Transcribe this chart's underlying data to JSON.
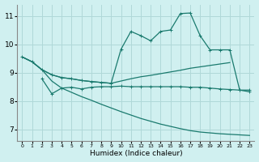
{
  "xlabel": "Humidex (Indice chaleur)",
  "bg_color": "#d0f0f0",
  "line_color": "#1a7a6e",
  "grid_color": "#b0d8d8",
  "xlim": [
    -0.5,
    23.5
  ],
  "ylim": [
    6.6,
    11.4
  ],
  "yticks": [
    7,
    8,
    9,
    10,
    11
  ],
  "xticks": [
    0,
    1,
    2,
    3,
    4,
    5,
    6,
    7,
    8,
    9,
    10,
    11,
    12,
    13,
    14,
    15,
    16,
    17,
    18,
    19,
    20,
    21,
    22,
    23
  ],
  "line1_x": [
    0,
    1,
    2,
    3,
    4,
    5,
    6,
    7,
    8,
    9,
    10,
    11,
    12,
    13,
    14,
    15,
    16,
    17,
    18,
    19,
    20,
    21
  ],
  "line1_y": [
    9.55,
    9.38,
    9.1,
    8.92,
    8.82,
    8.78,
    8.72,
    8.68,
    8.65,
    8.62,
    8.7,
    8.78,
    8.85,
    8.9,
    8.96,
    9.02,
    9.08,
    9.15,
    9.2,
    9.25,
    9.3,
    9.35
  ],
  "line1_marker": false,
  "line2_x": [
    2,
    3,
    4,
    5,
    6,
    7,
    8,
    9,
    10,
    11,
    12,
    13,
    14,
    15,
    16,
    17,
    18,
    19,
    20,
    21,
    22,
    23
  ],
  "line2_y": [
    8.78,
    8.25,
    8.45,
    8.48,
    8.42,
    8.48,
    8.5,
    8.5,
    8.52,
    8.5,
    8.5,
    8.5,
    8.5,
    8.5,
    8.5,
    8.48,
    8.48,
    8.45,
    8.42,
    8.4,
    8.38,
    8.38
  ],
  "line2_marker": true,
  "line3_x": [
    0,
    1,
    2,
    3,
    4,
    5,
    6,
    7,
    8,
    9,
    10,
    11,
    12,
    13,
    14,
    15,
    16,
    17,
    18,
    19,
    20,
    21,
    22,
    23
  ],
  "line3_y": [
    9.55,
    9.38,
    9.1,
    8.7,
    8.45,
    8.3,
    8.15,
    8.02,
    7.88,
    7.75,
    7.62,
    7.5,
    7.38,
    7.28,
    7.18,
    7.1,
    7.02,
    6.95,
    6.9,
    6.87,
    6.84,
    6.82,
    6.8,
    6.78
  ],
  "line3_marker": false,
  "line4_x": [
    0,
    1,
    2,
    3,
    4,
    5,
    6,
    7,
    8,
    9,
    10,
    11,
    12,
    13,
    14,
    15,
    16,
    17,
    18,
    19,
    20,
    21,
    22,
    23
  ],
  "line4_y": [
    9.55,
    9.38,
    9.1,
    8.92,
    8.82,
    8.78,
    8.72,
    8.68,
    8.65,
    8.62,
    9.82,
    10.45,
    10.3,
    10.12,
    10.45,
    10.5,
    11.08,
    11.1,
    10.3,
    9.8,
    9.8,
    9.8,
    8.38,
    8.32
  ],
  "line4_marker": true
}
